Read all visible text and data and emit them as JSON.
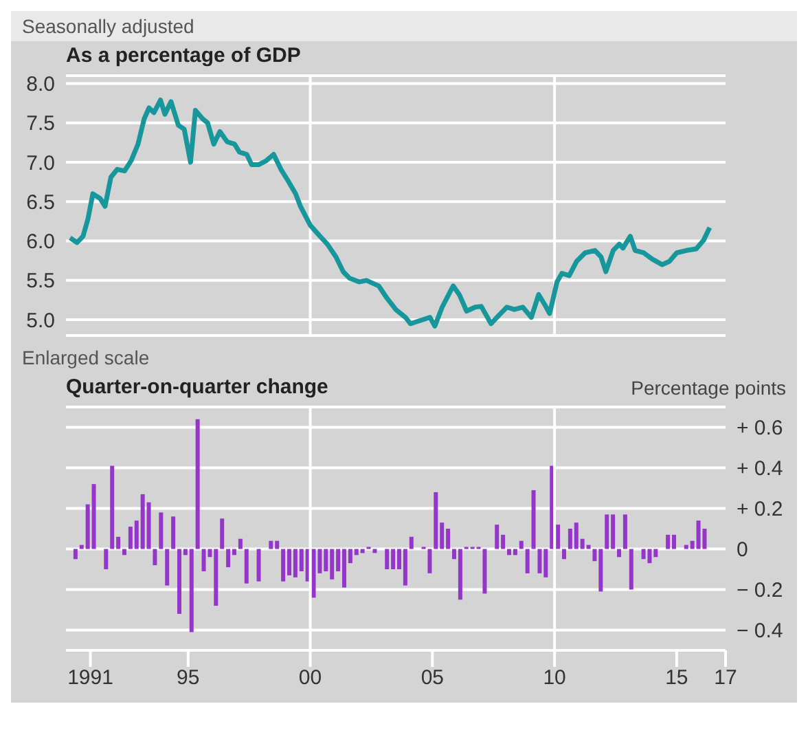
{
  "chart_data": [
    {
      "type": "line",
      "title": "As a percentage of GDP",
      "annotations": [
        "Seasonally adjusted"
      ],
      "xlim": [
        1990,
        2017
      ],
      "tick_labels": "y",
      "ylim": [
        4.8,
        8.1
      ],
      "yticks": [
        {
          "value": 5,
          "label": "5.0"
        },
        {
          "value": 5.5,
          "label": "5.5"
        },
        {
          "value": 6,
          "label": "6.0"
        },
        {
          "value": 6.5,
          "label": "6.5"
        },
        {
          "value": 7,
          "label": "7.0"
        },
        {
          "value": 7.5,
          "label": "7.5"
        },
        {
          "value": 8,
          "label": "8.0"
        }
      ],
      "grid": "y",
      "ref_lines": [
        {
          "axis": "x",
          "value": 2000,
          "color": "#ffffff"
        },
        {
          "axis": "x",
          "value": 2010,
          "color": "#ffffff"
        }
      ],
      "series": [
        {
          "color": "#17979b",
          "x": [
            1990.17,
            1990.45,
            1990.7,
            1990.9,
            1991.1,
            1991.4,
            1991.6,
            1991.84,
            1992.1,
            1992.4,
            1992.67,
            1992.95,
            1993.2,
            1993.4,
            1993.6,
            1993.87,
            1994.05,
            1994.3,
            1994.6,
            1994.84,
            1995.1,
            1995.3,
            1995.6,
            1995.8,
            1996.05,
            1996.3,
            1996.6,
            1996.9,
            1997.1,
            1997.4,
            1997.6,
            1997.9,
            1998.2,
            1998.5,
            1998.8,
            1999.1,
            1999.4,
            1999.6,
            2000.0,
            2000.4,
            2000.7,
            2001.05,
            2001.35,
            2001.6,
            2002.0,
            2002.3,
            2002.8,
            2003.15,
            2003.5,
            2003.9,
            2004.1,
            2004.5,
            2004.9,
            2005.1,
            2005.4,
            2005.85,
            2006.1,
            2006.4,
            2006.75,
            2007.0,
            2007.4,
            2007.7,
            2008.05,
            2008.35,
            2008.7,
            2009.05,
            2009.35,
            2009.6,
            2009.8,
            2010.1,
            2010.3,
            2010.6,
            2010.9,
            2011.25,
            2011.65,
            2011.9,
            2012.1,
            2012.4,
            2012.65,
            2012.8,
            2013.1,
            2013.3,
            2013.65,
            2014.0,
            2014.4,
            2014.7,
            2015.0,
            2015.4,
            2015.8,
            2016.1,
            2016.35
          ],
          "values": [
            6.04,
            5.98,
            6.06,
            6.28,
            6.6,
            6.54,
            6.44,
            6.81,
            6.91,
            6.89,
            7.02,
            7.23,
            7.55,
            7.69,
            7.63,
            7.79,
            7.61,
            7.77,
            7.47,
            7.42,
            7.0,
            7.66,
            7.55,
            7.5,
            7.23,
            7.39,
            7.26,
            7.23,
            7.13,
            7.1,
            6.97,
            6.97,
            7.02,
            7.1,
            6.91,
            6.76,
            6.6,
            6.44,
            6.2,
            6.06,
            5.96,
            5.8,
            5.61,
            5.53,
            5.48,
            5.5,
            5.43,
            5.27,
            5.13,
            5.03,
            4.95,
            4.99,
            5.03,
            4.92,
            5.16,
            5.43,
            5.32,
            5.11,
            5.16,
            5.17,
            4.95,
            5.05,
            5.16,
            5.13,
            5.16,
            5.03,
            5.32,
            5.19,
            5.08,
            5.48,
            5.59,
            5.56,
            5.74,
            5.85,
            5.88,
            5.8,
            5.61,
            5.88,
            5.96,
            5.91,
            6.06,
            5.88,
            5.85,
            5.77,
            5.7,
            5.74,
            5.85,
            5.88,
            5.9,
            6.01,
            6.17
          ]
        }
      ]
    },
    {
      "type": "bar",
      "title": "Quarter-on-quarter change",
      "annotations": [
        "Enlarged scale"
      ],
      "y2label": "Percentage points",
      "xlim": [
        1990,
        2017
      ],
      "xticks": [
        {
          "value": 1991,
          "label": "1991"
        },
        {
          "value": 1995,
          "label": "95"
        },
        {
          "value": 2000,
          "label": "00"
        },
        {
          "value": 2005,
          "label": "05"
        },
        {
          "value": 2010,
          "label": "10"
        },
        {
          "value": 2015,
          "label": "15"
        },
        {
          "value": 2017,
          "label": "17"
        }
      ],
      "y2lim": [
        -0.5,
        0.7
      ],
      "y2ticks": [
        {
          "value": 0.6,
          "label": "+ 0.6"
        },
        {
          "value": 0.4,
          "label": "+ 0.4"
        },
        {
          "value": 0.2,
          "label": "+ 0.2"
        },
        0,
        {
          "value": -0.2,
          "label": "− 0.2"
        },
        {
          "value": -0.4,
          "label": "− 0.4"
        }
      ],
      "grid": "y",
      "ref_lines": [
        {
          "axis": "x",
          "value": 2000,
          "color": "#ffffff"
        },
        {
          "axis": "x",
          "value": 2010,
          "color": "#ffffff"
        }
      ],
      "series": [
        {
          "color": "#9436c9",
          "axis": "y2",
          "x": [
            1990.375,
            1990.625,
            1990.875,
            1991.125,
            1991.375,
            1991.625,
            1991.875,
            1992.125,
            1992.375,
            1992.625,
            1992.875,
            1993.125,
            1993.375,
            1993.625,
            1993.875,
            1994.125,
            1994.375,
            1994.625,
            1994.875,
            1995.125,
            1995.375,
            1995.625,
            1995.875,
            1996.125,
            1996.375,
            1996.625,
            1996.875,
            1997.125,
            1997.375,
            1997.625,
            1997.875,
            1998.125,
            1998.375,
            1998.625,
            1998.875,
            1999.125,
            1999.375,
            1999.625,
            1999.875,
            2000.125,
            2000.375,
            2000.625,
            2000.875,
            2001.125,
            2001.375,
            2001.625,
            2001.875,
            2002.125,
            2002.375,
            2002.625,
            2002.875,
            2003.125,
            2003.375,
            2003.625,
            2003.875,
            2004.125,
            2004.375,
            2004.625,
            2004.875,
            2005.125,
            2005.375,
            2005.625,
            2005.875,
            2006.125,
            2006.375,
            2006.625,
            2006.875,
            2007.125,
            2007.375,
            2007.625,
            2007.875,
            2008.125,
            2008.375,
            2008.625,
            2008.875,
            2009.125,
            2009.375,
            2009.625,
            2009.875,
            2010.125,
            2010.375,
            2010.625,
            2010.875,
            2011.125,
            2011.375,
            2011.625,
            2011.875,
            2012.125,
            2012.375,
            2012.625,
            2012.875,
            2013.125,
            2013.375,
            2013.625,
            2013.875,
            2014.125,
            2014.375,
            2014.625,
            2014.875,
            2015.125,
            2015.375,
            2015.625,
            2015.875,
            2016.125
          ],
          "values": [
            -0.05,
            0.02,
            0.22,
            0.32,
            0,
            -0.1,
            0.41,
            0.06,
            -0.03,
            0.11,
            0.14,
            0.27,
            0.23,
            -0.08,
            0.18,
            -0.18,
            0.16,
            -0.32,
            -0.03,
            -0.41,
            0.64,
            -0.11,
            -0.04,
            -0.28,
            0.15,
            -0.09,
            -0.03,
            0.05,
            -0.17,
            0,
            -0.16,
            0,
            0.04,
            0.04,
            -0.16,
            -0.13,
            -0.14,
            -0.11,
            -0.16,
            -0.24,
            -0.12,
            -0.11,
            -0.15,
            -0.11,
            -0.19,
            -0.07,
            -0.03,
            -0.02,
            0.01,
            -0.02,
            0,
            -0.1,
            -0.1,
            -0.1,
            -0.18,
            0.06,
            0,
            0.01,
            -0.12,
            0.28,
            0.13,
            0.1,
            -0.05,
            -0.25,
            0.01,
            0.01,
            0.01,
            -0.22,
            0,
            0.12,
            0.07,
            -0.03,
            -0.03,
            0.04,
            -0.12,
            0.29,
            -0.12,
            -0.14,
            0.41,
            0.12,
            -0.05,
            0.1,
            0.13,
            0.05,
            0.02,
            -0.06,
            -0.21,
            0.17,
            0.17,
            -0.04,
            0.17,
            -0.2,
            0,
            -0.05,
            -0.07,
            -0.04,
            0,
            0.07,
            0.07,
            0,
            0.02,
            0.04,
            0.14,
            0.1
          ]
        }
      ]
    }
  ]
}
